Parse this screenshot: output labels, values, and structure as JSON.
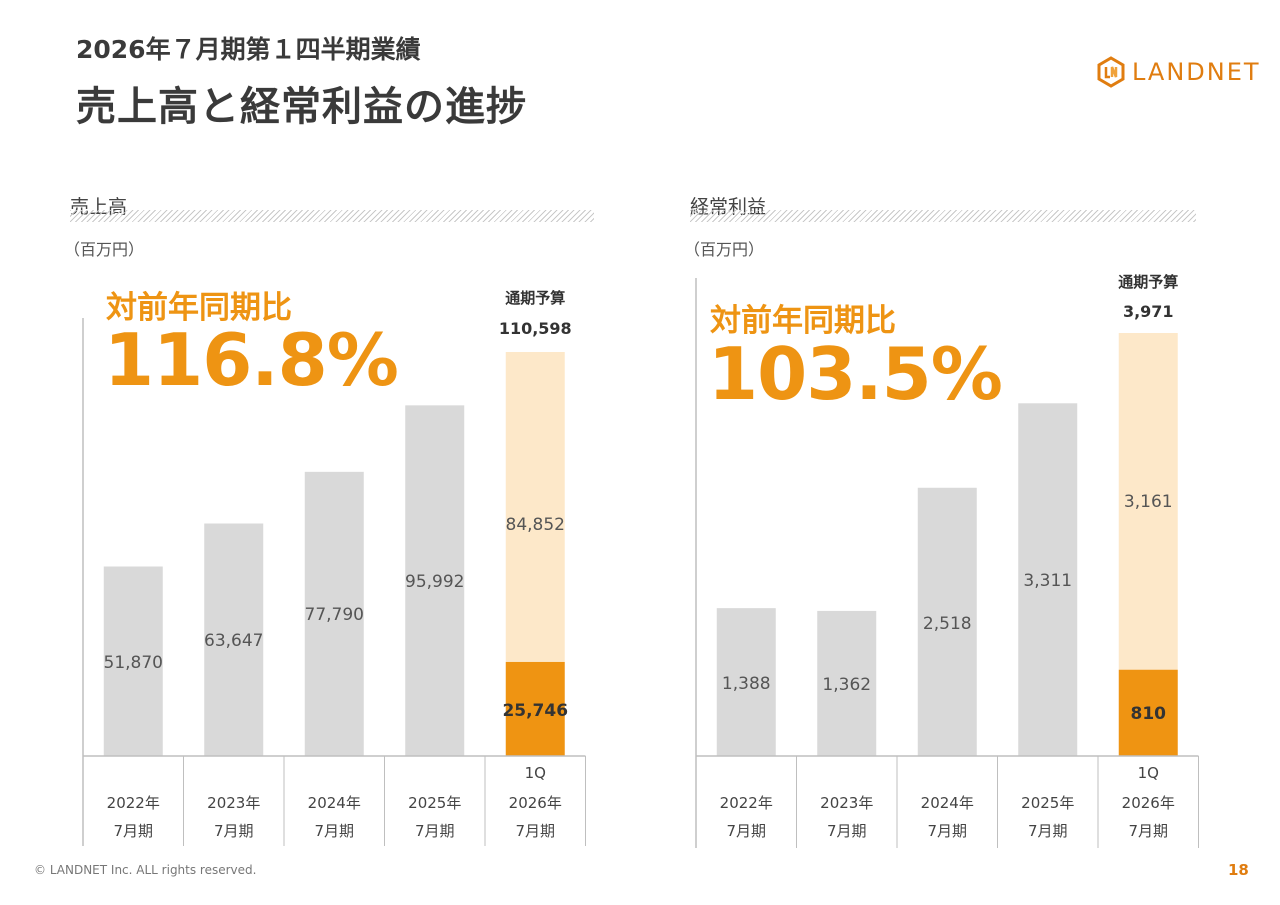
{
  "header": {
    "subtitle": "2026年７月期第１四半期業績",
    "title": "売上高と経常利益の進捗"
  },
  "brand": {
    "name": "LANDNET",
    "color": "#e07d10"
  },
  "colors": {
    "past": "#d9d9d9",
    "actual": "#ef9412",
    "remaining": "#fde8c9",
    "accent": "#ee9413"
  },
  "footer": {
    "copyright": "© LANDNET Inc. ALL rights reserved.",
    "page": "18"
  },
  "sales": {
    "label": "売上高",
    "unit": "（百万円）",
    "yoy_label": "対前年同期比",
    "yoy_value": "116.8%"
  },
  "profit": {
    "label": "経常利益",
    "unit": "（百万円）",
    "yoy_label": "対前年同期比",
    "yoy_value": "103.5%"
  },
  "chart_data": [
    {
      "type": "bar",
      "title": "売上高",
      "unit": "百万円",
      "categories": [
        {
          "year": "2022年",
          "period": "7月期",
          "note": ""
        },
        {
          "year": "2023年",
          "period": "7月期",
          "note": ""
        },
        {
          "year": "2024年",
          "period": "7月期",
          "note": ""
        },
        {
          "year": "2025年",
          "period": "7月期",
          "note": ""
        },
        {
          "year": "2026年",
          "period": "7月期",
          "note": "1Q"
        }
      ],
      "values": [
        51870,
        63647,
        77790,
        95992,
        25746
      ],
      "value_labels": [
        "51,870",
        "63,647",
        "77,790",
        "95,992",
        "25,746"
      ],
      "remaining": 84852,
      "remaining_label": "84,852",
      "budget": 110598,
      "budget_caption": "通期予算",
      "budget_label": "110,598",
      "ylim": [
        0,
        120000
      ]
    },
    {
      "type": "bar",
      "title": "経常利益",
      "unit": "百万円",
      "categories": [
        {
          "year": "2022年",
          "period": "7月期",
          "note": ""
        },
        {
          "year": "2023年",
          "period": "7月期",
          "note": ""
        },
        {
          "year": "2024年",
          "period": "7月期",
          "note": ""
        },
        {
          "year": "2025年",
          "period": "7月期",
          "note": ""
        },
        {
          "year": "2026年",
          "period": "7月期",
          "note": "1Q"
        }
      ],
      "values": [
        1388,
        1362,
        2518,
        3311,
        810
      ],
      "value_labels": [
        "1,388",
        "1,362",
        "2,518",
        "3,311",
        "810"
      ],
      "remaining": 3161,
      "remaining_label": "3,161",
      "budget": 3971,
      "budget_caption": "通期予算",
      "budget_label": "3,971",
      "ylim": [
        0,
        4000
      ]
    }
  ]
}
